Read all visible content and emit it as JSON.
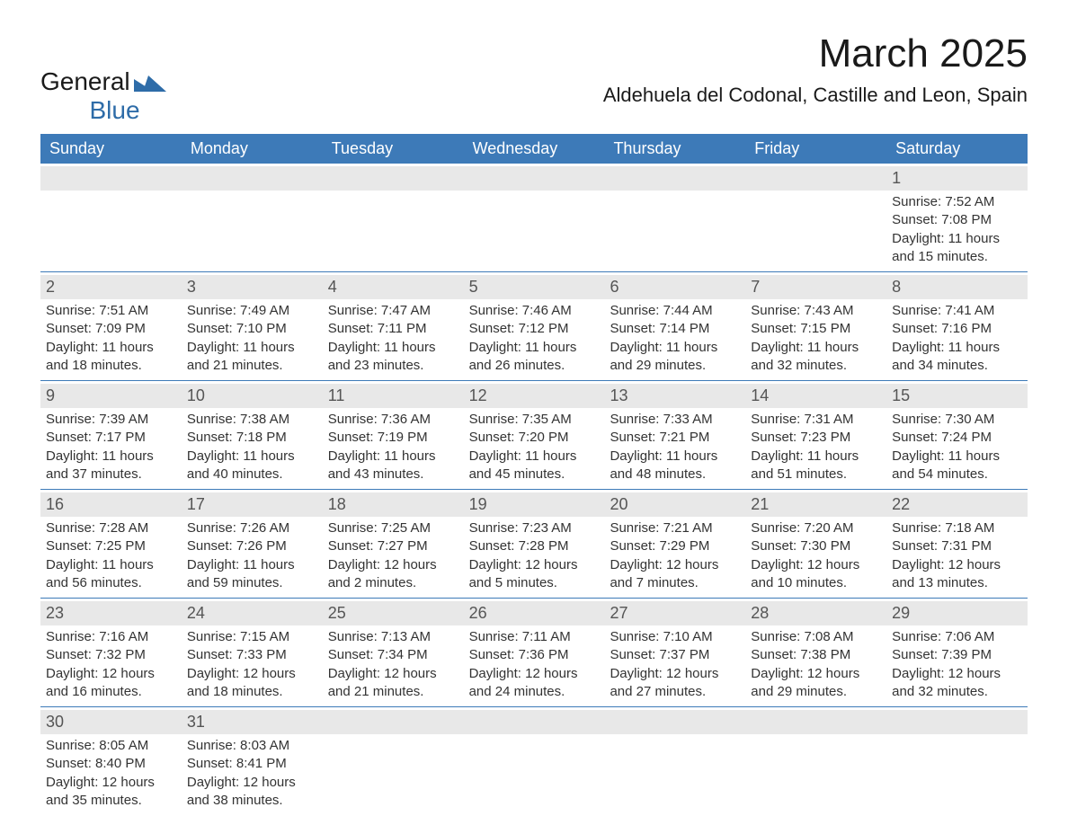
{
  "logo": {
    "text1": "General",
    "text2": "Blue"
  },
  "title": "March 2025",
  "location": "Aldehuela del Codonal, Castille and Leon, Spain",
  "colors": {
    "header_bg": "#3d7ab8",
    "header_text": "#ffffff",
    "daynum_bg": "#e8e8e8",
    "daynum_text": "#555555",
    "body_text": "#333333",
    "divider": "#3d7ab8",
    "logo_blue": "#2e6ca8",
    "background": "#ffffff"
  },
  "typography": {
    "title_fontsize": 44,
    "location_fontsize": 22,
    "header_fontsize": 18,
    "daynum_fontsize": 18,
    "info_fontsize": 15,
    "logo_fontsize": 28,
    "font_family": "Arial"
  },
  "day_headers": [
    "Sunday",
    "Monday",
    "Tuesday",
    "Wednesday",
    "Thursday",
    "Friday",
    "Saturday"
  ],
  "weeks": [
    [
      {
        "empty": true
      },
      {
        "empty": true
      },
      {
        "empty": true
      },
      {
        "empty": true
      },
      {
        "empty": true
      },
      {
        "empty": true
      },
      {
        "day": "1",
        "sunrise": "Sunrise: 7:52 AM",
        "sunset": "Sunset: 7:08 PM",
        "daylight1": "Daylight: 11 hours",
        "daylight2": "and 15 minutes."
      }
    ],
    [
      {
        "day": "2",
        "sunrise": "Sunrise: 7:51 AM",
        "sunset": "Sunset: 7:09 PM",
        "daylight1": "Daylight: 11 hours",
        "daylight2": "and 18 minutes."
      },
      {
        "day": "3",
        "sunrise": "Sunrise: 7:49 AM",
        "sunset": "Sunset: 7:10 PM",
        "daylight1": "Daylight: 11 hours",
        "daylight2": "and 21 minutes."
      },
      {
        "day": "4",
        "sunrise": "Sunrise: 7:47 AM",
        "sunset": "Sunset: 7:11 PM",
        "daylight1": "Daylight: 11 hours",
        "daylight2": "and 23 minutes."
      },
      {
        "day": "5",
        "sunrise": "Sunrise: 7:46 AM",
        "sunset": "Sunset: 7:12 PM",
        "daylight1": "Daylight: 11 hours",
        "daylight2": "and 26 minutes."
      },
      {
        "day": "6",
        "sunrise": "Sunrise: 7:44 AM",
        "sunset": "Sunset: 7:14 PM",
        "daylight1": "Daylight: 11 hours",
        "daylight2": "and 29 minutes."
      },
      {
        "day": "7",
        "sunrise": "Sunrise: 7:43 AM",
        "sunset": "Sunset: 7:15 PM",
        "daylight1": "Daylight: 11 hours",
        "daylight2": "and 32 minutes."
      },
      {
        "day": "8",
        "sunrise": "Sunrise: 7:41 AM",
        "sunset": "Sunset: 7:16 PM",
        "daylight1": "Daylight: 11 hours",
        "daylight2": "and 34 minutes."
      }
    ],
    [
      {
        "day": "9",
        "sunrise": "Sunrise: 7:39 AM",
        "sunset": "Sunset: 7:17 PM",
        "daylight1": "Daylight: 11 hours",
        "daylight2": "and 37 minutes."
      },
      {
        "day": "10",
        "sunrise": "Sunrise: 7:38 AM",
        "sunset": "Sunset: 7:18 PM",
        "daylight1": "Daylight: 11 hours",
        "daylight2": "and 40 minutes."
      },
      {
        "day": "11",
        "sunrise": "Sunrise: 7:36 AM",
        "sunset": "Sunset: 7:19 PM",
        "daylight1": "Daylight: 11 hours",
        "daylight2": "and 43 minutes."
      },
      {
        "day": "12",
        "sunrise": "Sunrise: 7:35 AM",
        "sunset": "Sunset: 7:20 PM",
        "daylight1": "Daylight: 11 hours",
        "daylight2": "and 45 minutes."
      },
      {
        "day": "13",
        "sunrise": "Sunrise: 7:33 AM",
        "sunset": "Sunset: 7:21 PM",
        "daylight1": "Daylight: 11 hours",
        "daylight2": "and 48 minutes."
      },
      {
        "day": "14",
        "sunrise": "Sunrise: 7:31 AM",
        "sunset": "Sunset: 7:23 PM",
        "daylight1": "Daylight: 11 hours",
        "daylight2": "and 51 minutes."
      },
      {
        "day": "15",
        "sunrise": "Sunrise: 7:30 AM",
        "sunset": "Sunset: 7:24 PM",
        "daylight1": "Daylight: 11 hours",
        "daylight2": "and 54 minutes."
      }
    ],
    [
      {
        "day": "16",
        "sunrise": "Sunrise: 7:28 AM",
        "sunset": "Sunset: 7:25 PM",
        "daylight1": "Daylight: 11 hours",
        "daylight2": "and 56 minutes."
      },
      {
        "day": "17",
        "sunrise": "Sunrise: 7:26 AM",
        "sunset": "Sunset: 7:26 PM",
        "daylight1": "Daylight: 11 hours",
        "daylight2": "and 59 minutes."
      },
      {
        "day": "18",
        "sunrise": "Sunrise: 7:25 AM",
        "sunset": "Sunset: 7:27 PM",
        "daylight1": "Daylight: 12 hours",
        "daylight2": "and 2 minutes."
      },
      {
        "day": "19",
        "sunrise": "Sunrise: 7:23 AM",
        "sunset": "Sunset: 7:28 PM",
        "daylight1": "Daylight: 12 hours",
        "daylight2": "and 5 minutes."
      },
      {
        "day": "20",
        "sunrise": "Sunrise: 7:21 AM",
        "sunset": "Sunset: 7:29 PM",
        "daylight1": "Daylight: 12 hours",
        "daylight2": "and 7 minutes."
      },
      {
        "day": "21",
        "sunrise": "Sunrise: 7:20 AM",
        "sunset": "Sunset: 7:30 PM",
        "daylight1": "Daylight: 12 hours",
        "daylight2": "and 10 minutes."
      },
      {
        "day": "22",
        "sunrise": "Sunrise: 7:18 AM",
        "sunset": "Sunset: 7:31 PM",
        "daylight1": "Daylight: 12 hours",
        "daylight2": "and 13 minutes."
      }
    ],
    [
      {
        "day": "23",
        "sunrise": "Sunrise: 7:16 AM",
        "sunset": "Sunset: 7:32 PM",
        "daylight1": "Daylight: 12 hours",
        "daylight2": "and 16 minutes."
      },
      {
        "day": "24",
        "sunrise": "Sunrise: 7:15 AM",
        "sunset": "Sunset: 7:33 PM",
        "daylight1": "Daylight: 12 hours",
        "daylight2": "and 18 minutes."
      },
      {
        "day": "25",
        "sunrise": "Sunrise: 7:13 AM",
        "sunset": "Sunset: 7:34 PM",
        "daylight1": "Daylight: 12 hours",
        "daylight2": "and 21 minutes."
      },
      {
        "day": "26",
        "sunrise": "Sunrise: 7:11 AM",
        "sunset": "Sunset: 7:36 PM",
        "daylight1": "Daylight: 12 hours",
        "daylight2": "and 24 minutes."
      },
      {
        "day": "27",
        "sunrise": "Sunrise: 7:10 AM",
        "sunset": "Sunset: 7:37 PM",
        "daylight1": "Daylight: 12 hours",
        "daylight2": "and 27 minutes."
      },
      {
        "day": "28",
        "sunrise": "Sunrise: 7:08 AM",
        "sunset": "Sunset: 7:38 PM",
        "daylight1": "Daylight: 12 hours",
        "daylight2": "and 29 minutes."
      },
      {
        "day": "29",
        "sunrise": "Sunrise: 7:06 AM",
        "sunset": "Sunset: 7:39 PM",
        "daylight1": "Daylight: 12 hours",
        "daylight2": "and 32 minutes."
      }
    ],
    [
      {
        "day": "30",
        "sunrise": "Sunrise: 8:05 AM",
        "sunset": "Sunset: 8:40 PM",
        "daylight1": "Daylight: 12 hours",
        "daylight2": "and 35 minutes."
      },
      {
        "day": "31",
        "sunrise": "Sunrise: 8:03 AM",
        "sunset": "Sunset: 8:41 PM",
        "daylight1": "Daylight: 12 hours",
        "daylight2": "and 38 minutes."
      },
      {
        "empty": true
      },
      {
        "empty": true
      },
      {
        "empty": true
      },
      {
        "empty": true
      },
      {
        "empty": true
      }
    ]
  ]
}
